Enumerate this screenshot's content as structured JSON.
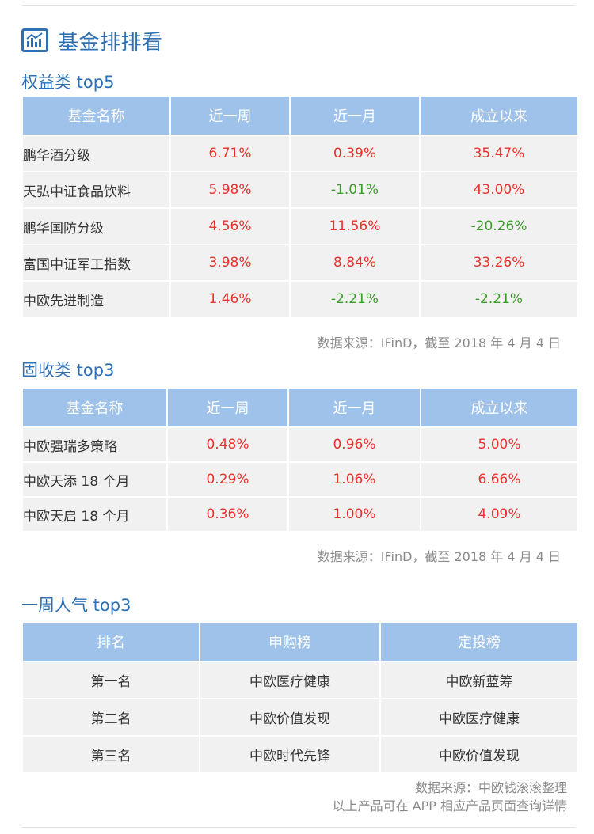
{
  "header": {
    "title": "基金排排看",
    "icon": "bar-chart-icon",
    "accent_color": "#2f6fb3"
  },
  "equity": {
    "section_title": "权益类 top5",
    "columns": [
      "基金名称",
      "近一周",
      "近一月",
      "成立以来"
    ],
    "rows": [
      {
        "name": "鹏华酒分级",
        "week": "6.71%",
        "month": "0.39%",
        "since": "35.47%"
      },
      {
        "name": "天弘中证食品饮料",
        "week": "5.98%",
        "month": "-1.01%",
        "since": "43.00%"
      },
      {
        "name": "鹏华国防分级",
        "week": "4.56%",
        "month": "11.56%",
        "since": "-20.26%"
      },
      {
        "name": "富国中证军工指数",
        "week": "3.98%",
        "month": "8.84%",
        "since": "33.26%"
      },
      {
        "name": "中欧先进制造",
        "week": "1.46%",
        "month": "-2.21%",
        "since": "-2.21%"
      }
    ],
    "source": "数据来源：IFinD，截至 2018 年 4 月 4 日"
  },
  "fixed": {
    "section_title": "固收类 top3",
    "columns": [
      "基金名称",
      "近一周",
      "近一月",
      "成立以来"
    ],
    "rows": [
      {
        "name": "中欧强瑞多策略",
        "week": "0.48%",
        "month": "0.96%",
        "since": "5.00%"
      },
      {
        "name": "中欧天添 18 个月",
        "week": "0.29%",
        "month": "1.06%",
        "since": "6.66%"
      },
      {
        "name": "中欧天启 18 个月",
        "week": "0.36%",
        "month": "1.00%",
        "since": "4.09%"
      }
    ],
    "source": "数据来源：IFinD，截至 2018 年 4 月 4 日"
  },
  "popular": {
    "section_title": "一周人气 top3",
    "columns": [
      "排名",
      "申购榜",
      "定投榜"
    ],
    "rows": [
      {
        "rank": "第一名",
        "purchase": "中欧医疗健康",
        "sip": "中欧新蓝筹"
      },
      {
        "rank": "第二名",
        "purchase": "中欧价值发现",
        "sip": "中欧医疗健康"
      },
      {
        "rank": "第三名",
        "purchase": "中欧时代先锋",
        "sip": "中欧价值发现"
      }
    ],
    "source_line1": "数据来源：中欧钱滚滚整理",
    "source_line2": "以上产品可在 APP 相应产品页面查询详情"
  },
  "colors": {
    "header_bg": "#9ec2ea",
    "row_bg": "#f1f1f1",
    "positive": "#e8322b",
    "negative": "#3c9d2b"
  }
}
